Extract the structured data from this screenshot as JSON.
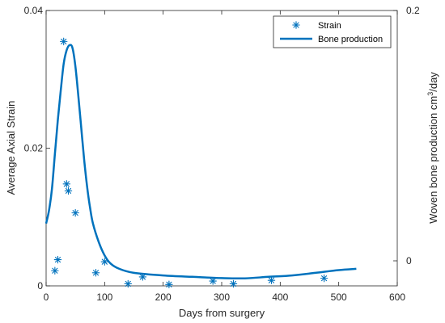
{
  "chart_data": {
    "type": "line",
    "xlabel": "Days from surgery",
    "ylabel_left": "Average Axial Strain",
    "ylabel_right": "Woven bone production",
    "ylabel_right_unit": "cm",
    "ylabel_right_unit_exp": "3",
    "ylabel_right_unit_tail": "/day",
    "xlim": [
      0,
      600
    ],
    "ylim_left": [
      0,
      0.04
    ],
    "ylim_right": [
      -0.02,
      0.2
    ],
    "x_ticks": [
      0,
      100,
      200,
      300,
      400,
      500,
      600
    ],
    "x_tick_labels": [
      "0",
      "100",
      "200",
      "300",
      "400",
      "500",
      "600"
    ],
    "y_left_ticks": [
      0,
      0.02,
      0.04
    ],
    "y_left_tick_labels": [
      "0",
      "0.02",
      "0.04"
    ],
    "y_right_ticks": [
      0,
      0.2
    ],
    "y_right_tick_labels": [
      "0",
      "0.2"
    ],
    "grid": false,
    "legend_position": "top-right",
    "series": [
      {
        "name": "Strain",
        "kind": "scatter",
        "marker": "asterisk",
        "axis": "left",
        "color": "#0072BD",
        "points": [
          [
            15,
            0.0022
          ],
          [
            20,
            0.0038
          ],
          [
            30,
            0.0355
          ],
          [
            35,
            0.0148
          ],
          [
            38,
            0.0138
          ],
          [
            50,
            0.0106
          ],
          [
            85,
            0.0019
          ],
          [
            100,
            0.0035
          ],
          [
            140,
            0.0003
          ],
          [
            165,
            0.0013
          ],
          [
            210,
            0.0002
          ],
          [
            285,
            0.0007
          ],
          [
            320,
            0.0003
          ],
          [
            385,
            0.0008
          ],
          [
            475,
            0.0011
          ]
        ]
      },
      {
        "name": "Bone production",
        "kind": "line",
        "axis": "right",
        "color": "#0072BD",
        "points": [
          [
            0,
            0.0298
          ],
          [
            5,
            0.0404
          ],
          [
            10,
            0.0574
          ],
          [
            15,
            0.0851
          ],
          [
            20,
            0.1128
          ],
          [
            25,
            0.1362
          ],
          [
            30,
            0.1574
          ],
          [
            35,
            0.1681
          ],
          [
            40,
            0.1723
          ],
          [
            45,
            0.1702
          ],
          [
            50,
            0.1553
          ],
          [
            55,
            0.1319
          ],
          [
            60,
            0.1064
          ],
          [
            65,
            0.0809
          ],
          [
            70,
            0.0596
          ],
          [
            75,
            0.0426
          ],
          [
            80,
            0.0298
          ],
          [
            90,
            0.0149
          ],
          [
            100,
            0.0043
          ],
          [
            110,
            -0.0021
          ],
          [
            125,
            -0.0064
          ],
          [
            150,
            -0.0096
          ],
          [
            200,
            -0.0117
          ],
          [
            250,
            -0.0128
          ],
          [
            300,
            -0.0138
          ],
          [
            340,
            -0.014
          ],
          [
            380,
            -0.0128
          ],
          [
            420,
            -0.0117
          ],
          [
            460,
            -0.0096
          ],
          [
            500,
            -0.0074
          ],
          [
            530,
            -0.0064
          ]
        ]
      }
    ]
  }
}
